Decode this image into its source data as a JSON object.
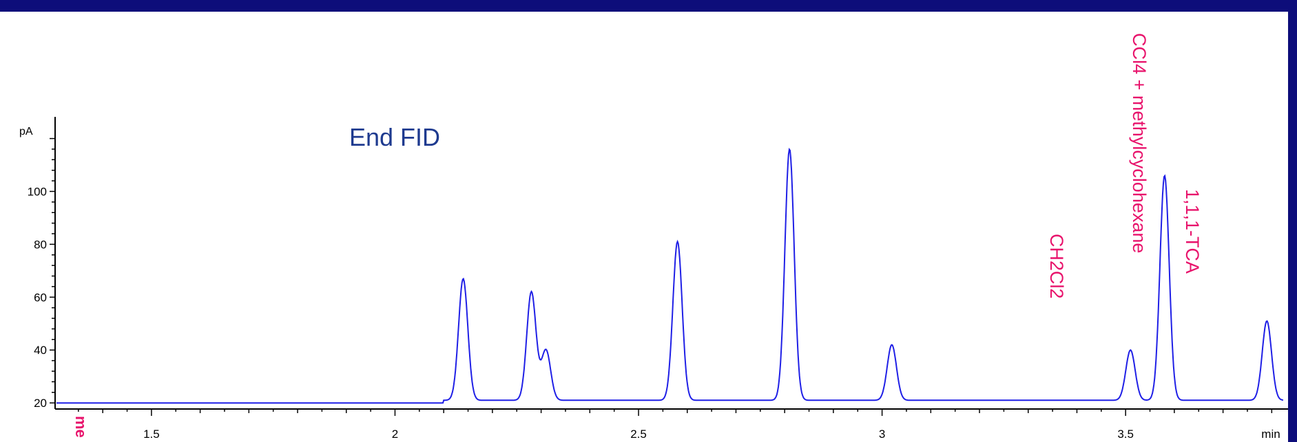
{
  "colors": {
    "frame": "#0d0d7a",
    "panel": "#ffffff",
    "trace": "#1f1fe6",
    "title": "#1e3a8f",
    "label": "#e8126b",
    "axis": "#000000"
  },
  "chart_data": {
    "type": "line",
    "title": "End FID",
    "ylabel": "pA",
    "xlabel": "min",
    "xlim": [
      1.305,
      3.825
    ],
    "ylim": [
      19,
      123
    ],
    "xticks": [
      1.5,
      2,
      2.5,
      3,
      3.5
    ],
    "yticks": [
      20,
      40,
      60,
      80,
      100
    ],
    "baseline": 21,
    "series": [
      {
        "peaks": [
          {
            "x": 2.14,
            "y": 67
          },
          {
            "x": 2.28,
            "y": 62
          },
          {
            "x": 2.31,
            "y": 40
          },
          {
            "x": 2.58,
            "y": 81
          },
          {
            "x": 2.81,
            "y": 116
          },
          {
            "x": 3.02,
            "y": 42
          },
          {
            "x": 3.51,
            "y": 40
          },
          {
            "x": 3.58,
            "y": 106
          },
          {
            "x": 3.79,
            "y": 51
          }
        ]
      }
    ],
    "annotations": [
      {
        "text": "CH2Cl2",
        "x": 3.51
      },
      {
        "text": "CCl4 + methylcyclohexane",
        "x": 3.59
      },
      {
        "text": "1,1,1-TCA",
        "x": 3.79
      }
    ],
    "side_label": "me",
    "grid": false
  }
}
